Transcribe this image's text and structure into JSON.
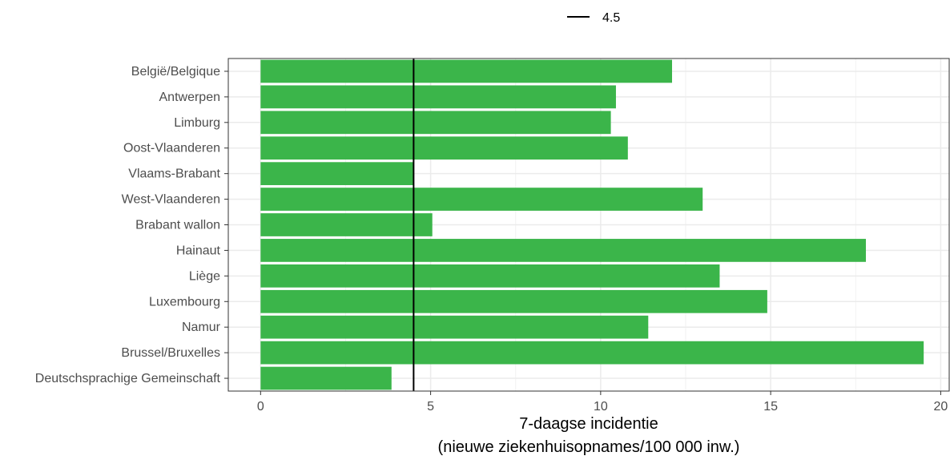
{
  "chart_data": {
    "type": "bar",
    "orientation": "horizontal",
    "categories": [
      "België/Belgique",
      "Antwerpen",
      "Limburg",
      "Oost-Vlaanderen",
      "Vlaams-Brabant",
      "West-Vlaanderen",
      "Brabant wallon",
      "Hainaut",
      "Liège",
      "Luxembourg",
      "Namur",
      "Brussel/Bruxelles",
      "Deutschsprachige Gemeinschaft"
    ],
    "values": [
      12.1,
      10.45,
      10.3,
      10.8,
      4.5,
      13.0,
      5.05,
      17.8,
      13.5,
      14.9,
      11.4,
      19.5,
      3.85
    ],
    "xlabel_line1": "7-daagse incidentie",
    "xlabel_line2": "(nieuwe ziekenhuisopnames/100 000 inw.)",
    "xlim": [
      -0.95,
      20.25
    ],
    "xticks": [
      0,
      5,
      10,
      15,
      20
    ],
    "xtick_labels": [
      "0",
      "5",
      "10",
      "15",
      "20"
    ],
    "grid": true,
    "reference_line": {
      "value": 4.5,
      "label": "4.5",
      "color": "#000000"
    },
    "legend_position": "top",
    "bar_color": "#3bb54a"
  }
}
